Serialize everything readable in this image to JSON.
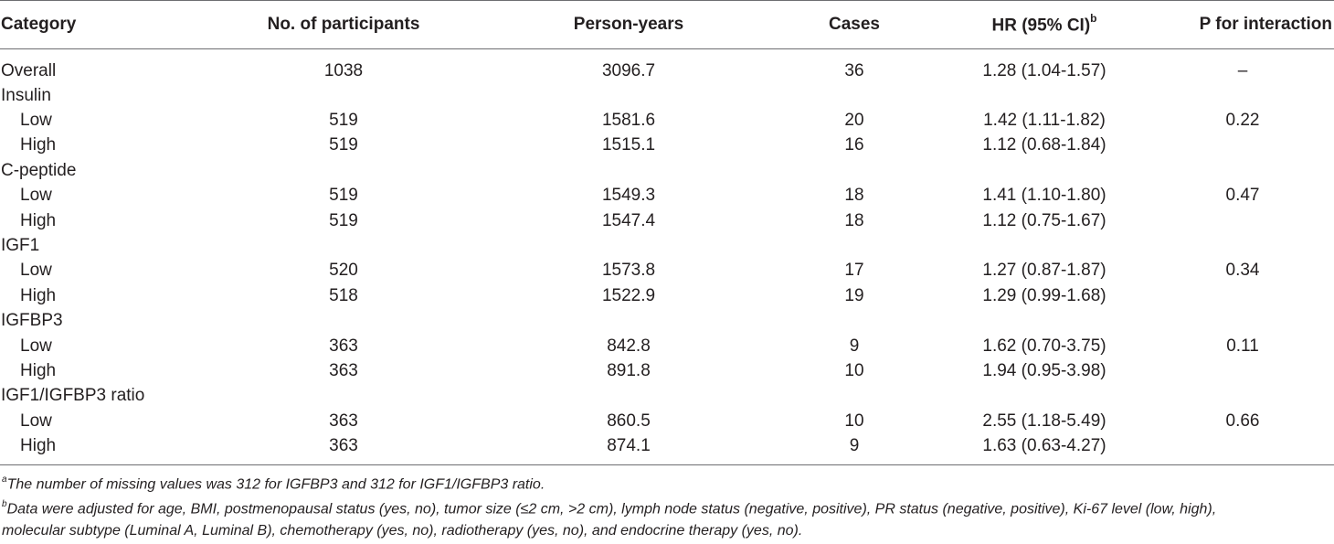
{
  "table": {
    "headers": {
      "category": "Category",
      "participants": "No. of participants",
      "person_years": "Person-years",
      "cases": "Cases",
      "hr": "HR (95% CI)",
      "hr_sup": "b",
      "p": "P for interaction"
    },
    "rows": [
      {
        "category": "Overall",
        "indent": false,
        "participants": "1038",
        "person_years": "3096.7",
        "cases": "36",
        "hr": "1.28 (1.04-1.57)",
        "p": "–"
      },
      {
        "category": "Insulin",
        "indent": false,
        "participants": "",
        "person_years": "",
        "cases": "",
        "hr": "",
        "p": ""
      },
      {
        "category": "Low",
        "indent": true,
        "participants": "519",
        "person_years": "1581.6",
        "cases": "20",
        "hr": "1.42 (1.11-1.82)",
        "p": "0.22"
      },
      {
        "category": "High",
        "indent": true,
        "participants": "519",
        "person_years": "1515.1",
        "cases": "16",
        "hr": "1.12 (0.68-1.84)",
        "p": ""
      },
      {
        "category": "C-peptide",
        "indent": false,
        "participants": "",
        "person_years": "",
        "cases": "",
        "hr": "",
        "p": ""
      },
      {
        "category": "Low",
        "indent": true,
        "participants": "519",
        "person_years": "1549.3",
        "cases": "18",
        "hr": "1.41 (1.10-1.80)",
        "p": "0.47"
      },
      {
        "category": "High",
        "indent": true,
        "participants": "519",
        "person_years": "1547.4",
        "cases": "18",
        "hr": "1.12 (0.75-1.67)",
        "p": ""
      },
      {
        "category": "IGF1",
        "indent": false,
        "participants": "",
        "person_years": "",
        "cases": "",
        "hr": "",
        "p": ""
      },
      {
        "category": "Low",
        "indent": true,
        "participants": "520",
        "person_years": "1573.8",
        "cases": "17",
        "hr": "1.27 (0.87-1.87)",
        "p": "0.34"
      },
      {
        "category": "High",
        "indent": true,
        "participants": "518",
        "person_years": "1522.9",
        "cases": "19",
        "hr": "1.29 (0.99-1.68)",
        "p": ""
      },
      {
        "category": "IGFBP3",
        "indent": false,
        "participants": "",
        "person_years": "",
        "cases": "",
        "hr": "",
        "p": ""
      },
      {
        "category": "Low",
        "indent": true,
        "participants": "363",
        "person_years": "842.8",
        "cases": "9",
        "hr": "1.62 (0.70-3.75)",
        "p": "0.11"
      },
      {
        "category": "High",
        "indent": true,
        "participants": "363",
        "person_years": "891.8",
        "cases": "10",
        "hr": "1.94 (0.95-3.98)",
        "p": ""
      },
      {
        "category": "IGF1/IGFBP3 ratio",
        "indent": false,
        "participants": "",
        "person_years": "",
        "cases": "",
        "hr": "",
        "p": ""
      },
      {
        "category": "Low",
        "indent": true,
        "participants": "363",
        "person_years": "860.5",
        "cases": "10",
        "hr": "2.55 (1.18-5.49)",
        "p": "0.66"
      },
      {
        "category": "High",
        "indent": true,
        "participants": "363",
        "person_years": "874.1",
        "cases": "9",
        "hr": "1.63 (0.63-4.27)",
        "p": ""
      }
    ]
  },
  "footnotes": [
    {
      "marker": "a",
      "text": "The number of missing values was 312 for IGFBP3 and 312 for IGF1/IGFBP3 ratio."
    },
    {
      "marker": "b",
      "text": "Data were adjusted for age, BMI, postmenopausal status (yes, no), tumor size (≤2 cm, >2 cm), lymph node status (negative, positive), PR status (negative, positive), Ki-67 level (low, high),"
    },
    {
      "marker": "",
      "text": "molecular subtype (Luminal A, Luminal B), chemotherapy (yes, no), radiotherapy (yes, no), and endocrine therapy (yes, no)."
    }
  ],
  "colors": {
    "text": "#231f20",
    "rule": "#6d6e71"
  }
}
